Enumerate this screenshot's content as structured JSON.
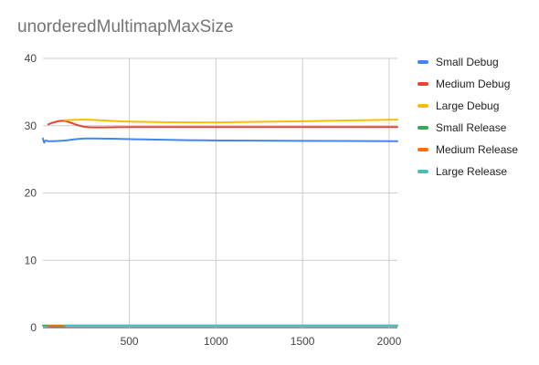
{
  "chart_data": {
    "type": "line",
    "title": "unorderedMultimapMaxSize",
    "xlabel": "",
    "ylabel": "",
    "xlim": [
      1,
      2048
    ],
    "ylim": [
      0,
      40
    ],
    "xticks": [
      500,
      1000,
      1500,
      2000
    ],
    "yticks": [
      0,
      10,
      20,
      30,
      40
    ],
    "grid": true,
    "legend_position": "right",
    "series": [
      {
        "name": "Small Debug",
        "color": "#4285f4",
        "x": [
          1,
          8,
          16,
          32,
          64,
          128,
          256,
          512,
          1024,
          2048
        ],
        "y": [
          28.1,
          27.5,
          27.8,
          27.7,
          27.7,
          27.8,
          28.1,
          28.0,
          27.8,
          27.7
        ]
      },
      {
        "name": "Medium Debug",
        "color": "#ea4335",
        "x": [
          32,
          64,
          128,
          256,
          512,
          1024,
          2048
        ],
        "y": [
          30.2,
          30.5,
          30.7,
          29.8,
          29.8,
          29.8,
          29.8
        ]
      },
      {
        "name": "Large Debug",
        "color": "#fbbc04",
        "x": [
          128,
          256,
          512,
          1024,
          2048
        ],
        "y": [
          30.8,
          30.9,
          30.6,
          30.5,
          30.9
        ]
      },
      {
        "name": "Small Release",
        "color": "#34a853",
        "x": [
          1,
          8,
          16,
          32,
          64,
          128,
          256,
          512,
          1024,
          2048
        ],
        "y": [
          0.3,
          0.3,
          0.3,
          0.3,
          0.3,
          0.3,
          0.3,
          0.3,
          0.3,
          0.3
        ]
      },
      {
        "name": "Medium Release",
        "color": "#ff6d01",
        "x": [
          32,
          64,
          128
        ],
        "y": [
          0.25,
          0.25,
          0.25
        ]
      },
      {
        "name": "Large Release",
        "color": "#46bdc6",
        "x": [
          128,
          256,
          512,
          1024,
          2048
        ],
        "y": [
          0.3,
          0.3,
          0.3,
          0.3,
          0.3
        ]
      }
    ]
  }
}
